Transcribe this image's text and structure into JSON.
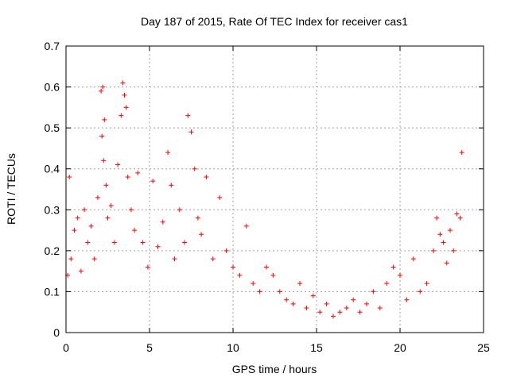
{
  "chart_data": {
    "type": "scatter",
    "title": "Day 187 of 2015, Rate Of TEC Index for receiver cas1",
    "xlabel": "GPS time / hours",
    "ylabel": "ROTI / TECUs",
    "xlim": [
      0,
      25
    ],
    "ylim": [
      0,
      0.7
    ],
    "xticks": [
      "0",
      "5",
      "10",
      "15",
      "20",
      "25"
    ],
    "yticks": [
      "0",
      "0.1",
      "0.2",
      "0.3",
      "0.4",
      "0.5",
      "0.6",
      "0.7"
    ],
    "grid": true,
    "marker": "+",
    "color": "#ff0000",
    "series": [
      {
        "name": "ROTI",
        "x": [
          0.1,
          0.2,
          0.3,
          0.5,
          0.7,
          0.9,
          1.1,
          1.3,
          1.5,
          1.7,
          1.9,
          2.1,
          2.15,
          2.2,
          2.25,
          2.3,
          2.4,
          2.5,
          2.7,
          2.9,
          3.1,
          3.3,
          3.4,
          3.5,
          3.6,
          3.7,
          3.9,
          4.1,
          4.3,
          4.6,
          4.9,
          5.2,
          5.5,
          5.8,
          6.1,
          6.3,
          6.5,
          6.8,
          7.1,
          7.3,
          7.5,
          7.7,
          7.9,
          8.1,
          8.4,
          8.8,
          9.2,
          9.6,
          10.0,
          10.4,
          10.8,
          11.2,
          11.6,
          12.0,
          12.4,
          12.8,
          13.2,
          13.6,
          14.0,
          14.4,
          14.8,
          15.2,
          15.6,
          16.0,
          16.4,
          16.8,
          17.2,
          17.6,
          18.0,
          18.4,
          18.8,
          19.2,
          19.6,
          20.0,
          20.4,
          20.8,
          21.2,
          21.6,
          22.0,
          22.2,
          22.4,
          22.6,
          22.8,
          23.0,
          23.2,
          23.4,
          23.6,
          23.7
        ],
        "y": [
          0.14,
          0.38,
          0.18,
          0.25,
          0.28,
          0.15,
          0.3,
          0.22,
          0.26,
          0.18,
          0.33,
          0.59,
          0.48,
          0.6,
          0.42,
          0.52,
          0.36,
          0.28,
          0.31,
          0.22,
          0.41,
          0.53,
          0.61,
          0.58,
          0.55,
          0.38,
          0.3,
          0.25,
          0.39,
          0.22,
          0.16,
          0.37,
          0.21,
          0.27,
          0.44,
          0.36,
          0.18,
          0.3,
          0.22,
          0.53,
          0.49,
          0.4,
          0.28,
          0.24,
          0.38,
          0.18,
          0.33,
          0.2,
          0.16,
          0.14,
          0.26,
          0.12,
          0.1,
          0.16,
          0.14,
          0.1,
          0.08,
          0.07,
          0.12,
          0.06,
          0.09,
          0.05,
          0.07,
          0.04,
          0.05,
          0.06,
          0.08,
          0.05,
          0.07,
          0.1,
          0.06,
          0.12,
          0.16,
          0.14,
          0.08,
          0.18,
          0.1,
          0.12,
          0.2,
          0.28,
          0.24,
          0.22,
          0.17,
          0.25,
          0.2,
          0.29,
          0.28,
          0.44
        ]
      }
    ]
  }
}
